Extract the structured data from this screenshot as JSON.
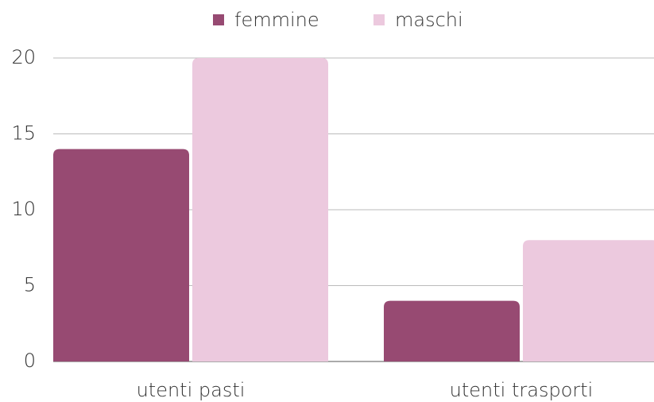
{
  "chart_data": {
    "type": "bar",
    "categories": [
      "utenti pasti",
      "utenti trasporti"
    ],
    "series": [
      {
        "name": "femmine",
        "color": "#974a72",
        "values": [
          14,
          4
        ]
      },
      {
        "name": "maschi",
        "color": "#ecc9de",
        "values": [
          20,
          8
        ]
      }
    ],
    "ylim": [
      0,
      20
    ],
    "yticks": [
      0,
      5,
      10,
      15,
      20
    ],
    "grid": true,
    "legend": "top"
  }
}
